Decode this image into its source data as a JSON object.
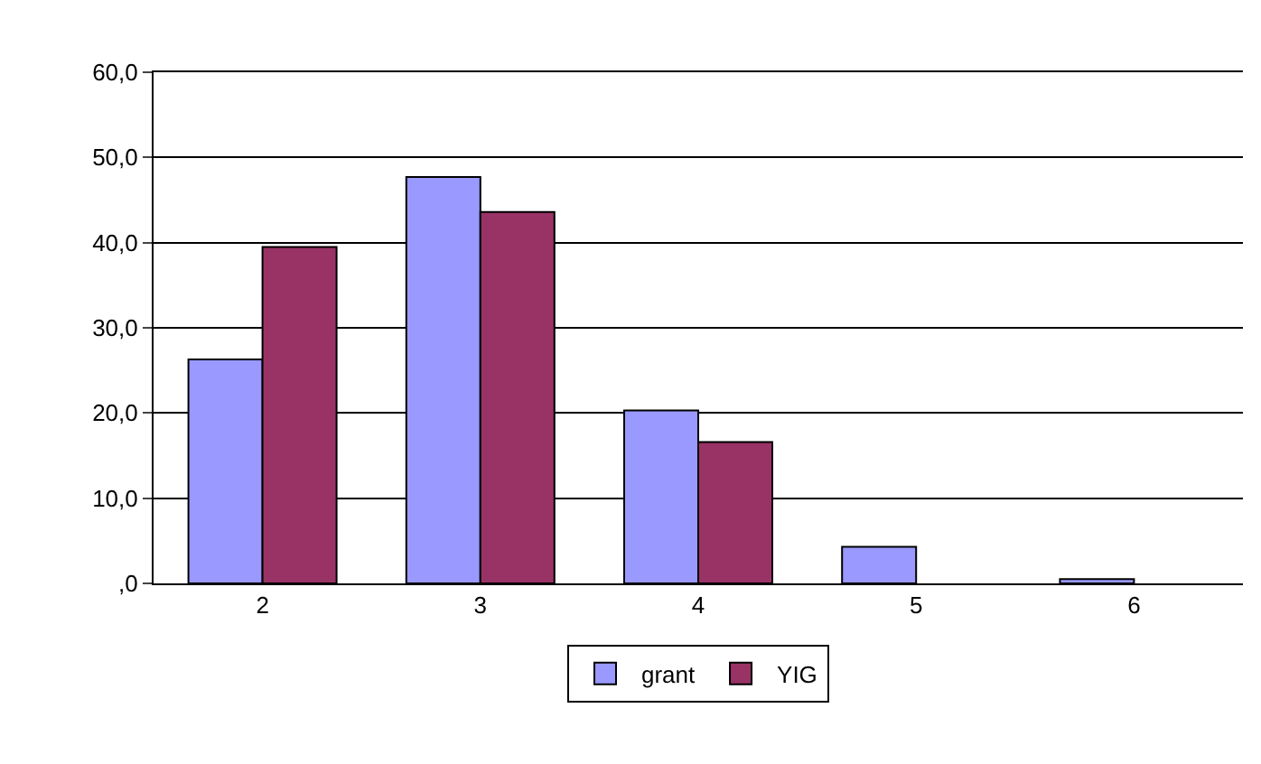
{
  "chart_data": {
    "type": "bar",
    "categories": [
      "2",
      "3",
      "4",
      "5",
      "6"
    ],
    "series": [
      {
        "name": "grant",
        "color": "#9999ff",
        "values": [
          26.3,
          47.7,
          20.3,
          4.3,
          0.5
        ]
      },
      {
        "name": "YIG",
        "color": "#993366",
        "values": [
          39.5,
          43.6,
          16.6,
          null,
          null
        ]
      }
    ],
    "ylim": [
      0,
      60
    ],
    "yticks": [
      {
        "value": 0,
        "label": ",0"
      },
      {
        "value": 10,
        "label": "10,0"
      },
      {
        "value": 20,
        "label": "20,0"
      },
      {
        "value": 30,
        "label": "30,0"
      },
      {
        "value": 40,
        "label": "40,0"
      },
      {
        "value": 50,
        "label": "50,0"
      },
      {
        "value": 60,
        "label": "60,0"
      }
    ],
    "grid": "y",
    "legend": "bottom"
  }
}
